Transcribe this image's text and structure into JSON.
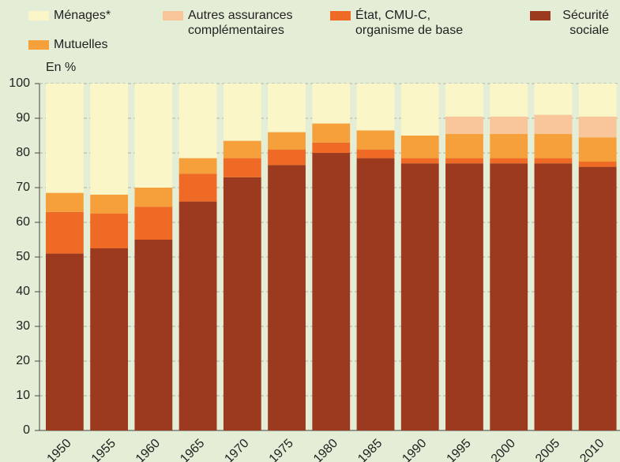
{
  "chart_data": {
    "type": "stacked_bar",
    "y_label": "En %",
    "categories": [
      "1950",
      "1955",
      "1960",
      "1965",
      "1970",
      "1975",
      "1980",
      "1985",
      "1990",
      "1995",
      "2000",
      "2005",
      "2010"
    ],
    "series": [
      {
        "name": "Sécurité\nsociale",
        "color": "#9b3a1e",
        "values": [
          51,
          52.5,
          55,
          66,
          73,
          76.5,
          80,
          78.5,
          77,
          77,
          77,
          77,
          76
        ]
      },
      {
        "name": "État, CMU-C,\norganisme de base",
        "color": "#ef6a24",
        "values": [
          12,
          10,
          9.5,
          8,
          5.5,
          4.5,
          3,
          2.5,
          1.5,
          1.5,
          1.5,
          1.5,
          1.5
        ]
      },
      {
        "name": "Mutuelles",
        "color": "#f5a03a",
        "values": [
          5.5,
          5.5,
          5.5,
          4.5,
          5,
          5,
          5.5,
          5.5,
          6.5,
          7,
          7,
          7,
          7
        ]
      },
      {
        "name": "Autres assurances\ncomplémentaires",
        "color": "#f9c59b",
        "values": [
          0,
          0,
          0,
          0,
          0,
          0,
          0,
          0,
          0,
          5,
          5,
          5.5,
          6
        ]
      },
      {
        "name": "Ménages*",
        "color": "#fbf6c8",
        "values": [
          31.5,
          32,
          30,
          21.5,
          16.5,
          14,
          11.5,
          13.5,
          15,
          9.5,
          9.5,
          9,
          9.5
        ]
      }
    ],
    "ylim": [
      0,
      100
    ],
    "yticks": [
      0,
      10,
      20,
      30,
      40,
      50,
      60,
      70,
      80,
      90,
      100
    ],
    "grid": true
  }
}
